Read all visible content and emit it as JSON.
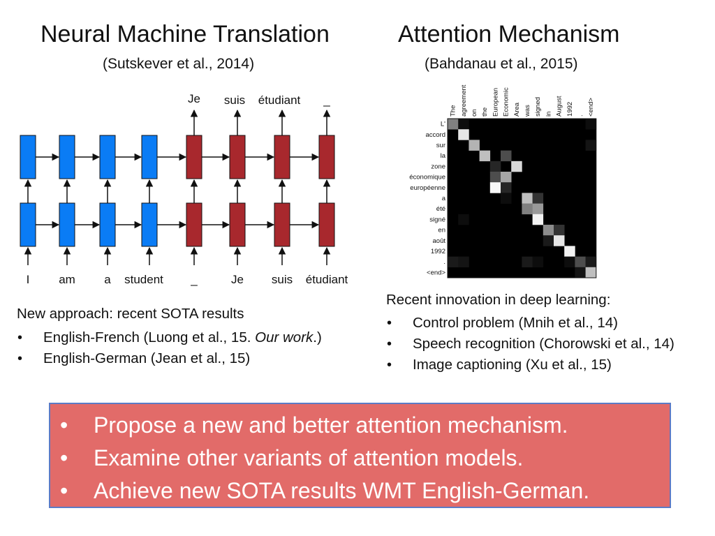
{
  "left": {
    "title": "Neural Machine Translation",
    "citation": "(Sutskever et al., 2014)",
    "diagram": {
      "input_words": [
        "I",
        "am",
        "a",
        "student",
        "_",
        "Je",
        "suis",
        "étudiant"
      ],
      "output_words": [
        "Je",
        "suis",
        "étudiant",
        "_"
      ],
      "encoder_color": "#0a7cf5",
      "decoder_color": "#a8282d"
    },
    "notes_heading": "New approach: recent SOTA results",
    "notes": [
      {
        "bullet": "•",
        "text": "English-French (Luong et al., 15. ",
        "em": "Our work",
        "after": ".)"
      },
      {
        "bullet": "•",
        "text": "English-German (Jean et al., 15)",
        "em": "",
        "after": ""
      }
    ]
  },
  "right": {
    "title": "Attention Mechanism",
    "citation": "(Bahdanau et al., 2015)",
    "heatmap": {
      "x_labels": [
        "The",
        "agreement",
        "on",
        "the",
        "European",
        "Economic",
        "Area",
        "was",
        "signed",
        "in",
        "August",
        "1992",
        ".",
        "<end>"
      ],
      "y_labels": [
        "L'",
        "accord",
        "sur",
        "la",
        "zone",
        "économique",
        "européenne",
        "a",
        "été",
        "signé",
        "en",
        "août",
        "1992",
        ".",
        "<end>"
      ],
      "weights": [
        [
          0.5,
          0.05,
          0,
          0,
          0,
          0,
          0,
          0,
          0,
          0,
          0,
          0,
          0,
          0.05
        ],
        [
          0,
          0.9,
          0,
          0,
          0,
          0,
          0,
          0,
          0,
          0,
          0,
          0,
          0,
          0
        ],
        [
          0,
          0,
          0.7,
          0,
          0,
          0,
          0,
          0,
          0,
          0,
          0,
          0,
          0,
          0.08
        ],
        [
          0,
          0,
          0,
          0.75,
          0,
          0.3,
          0,
          0,
          0,
          0,
          0,
          0,
          0,
          0
        ],
        [
          0,
          0,
          0,
          0,
          0.15,
          0,
          0.85,
          0,
          0,
          0,
          0,
          0,
          0,
          0
        ],
        [
          0,
          0,
          0,
          0,
          0.3,
          0.65,
          0,
          0,
          0,
          0,
          0,
          0,
          0,
          0
        ],
        [
          0,
          0,
          0,
          0,
          0.97,
          0.15,
          0,
          0,
          0,
          0,
          0,
          0,
          0,
          0
        ],
        [
          0,
          0,
          0,
          0,
          0,
          0.05,
          0,
          0.75,
          0.2,
          0,
          0,
          0,
          0,
          0
        ],
        [
          0,
          0,
          0,
          0,
          0,
          0,
          0,
          0.5,
          0.6,
          0,
          0,
          0,
          0,
          0
        ],
        [
          0,
          0.05,
          0,
          0,
          0,
          0,
          0,
          0,
          0.95,
          0,
          0,
          0,
          0,
          0
        ],
        [
          0,
          0,
          0,
          0,
          0,
          0,
          0,
          0,
          0,
          0.55,
          0.2,
          0,
          0,
          0
        ],
        [
          0,
          0,
          0,
          0,
          0,
          0,
          0,
          0,
          0,
          0.1,
          0.9,
          0,
          0,
          0
        ],
        [
          0,
          0,
          0,
          0,
          0,
          0,
          0,
          0,
          0,
          0,
          0,
          0.95,
          0,
          0
        ],
        [
          0.1,
          0.08,
          0,
          0,
          0,
          0,
          0,
          0.1,
          0.05,
          0,
          0,
          0.05,
          0.3,
          0.1
        ],
        [
          0,
          0,
          0,
          0,
          0,
          0,
          0,
          0,
          0,
          0,
          0,
          0,
          0.08,
          0.75
        ]
      ]
    },
    "notes_heading": "Recent innovation in deep learning:",
    "notes": [
      {
        "bullet": "•",
        "text": "Control problem (Mnih et al., 14)"
      },
      {
        "bullet": "•",
        "text": "Speech recognition (Chorowski et al., 14)"
      },
      {
        "bullet": "•",
        "text": "Image captioning (Xu et al., 15)"
      }
    ]
  },
  "callout": {
    "background": "#e26b69",
    "border": "#5b7bc6",
    "items": [
      {
        "bullet": "•",
        "text": "Propose a new and better attention mechanism."
      },
      {
        "bullet": "•",
        "text": "Examine other variants of attention models."
      },
      {
        "bullet": "•",
        "text": "Achieve new SOTA results WMT English-German."
      }
    ]
  }
}
